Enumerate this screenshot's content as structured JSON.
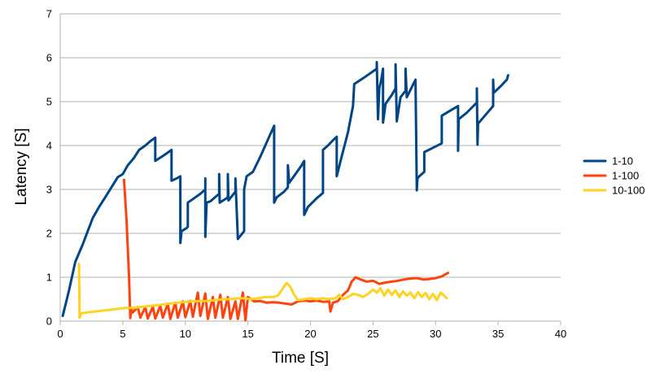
{
  "chart_data": {
    "type": "line",
    "title": "",
    "xlabel": "Time [S]",
    "ylabel": "Latency [S]",
    "xlim": [
      0,
      40
    ],
    "ylim": [
      0,
      7
    ],
    "x_ticks": [
      0,
      5,
      10,
      15,
      20,
      25,
      30,
      35,
      40
    ],
    "y_ticks": [
      0,
      1,
      2,
      3,
      4,
      5,
      6,
      7
    ],
    "grid": "horizontal",
    "legend_position": "right",
    "series": [
      {
        "name": "1-10",
        "color": "#004586",
        "points": [
          [
            0.2,
            0.12
          ],
          [
            0.7,
            0.7
          ],
          [
            1.2,
            1.35
          ],
          [
            1.8,
            1.75
          ],
          [
            2.2,
            2.05
          ],
          [
            2.6,
            2.35
          ],
          [
            3.1,
            2.6
          ],
          [
            3.6,
            2.82
          ],
          [
            4.1,
            3.05
          ],
          [
            4.6,
            3.28
          ],
          [
            5.0,
            3.35
          ],
          [
            5.4,
            3.55
          ],
          [
            5.9,
            3.72
          ],
          [
            6.3,
            3.9
          ],
          [
            6.8,
            4.0
          ],
          [
            7.2,
            4.1
          ],
          [
            7.6,
            4.18
          ],
          [
            7.6,
            3.65
          ],
          [
            8.3,
            3.78
          ],
          [
            8.9,
            3.9
          ],
          [
            8.9,
            3.2
          ],
          [
            9.3,
            3.25
          ],
          [
            9.6,
            3.3
          ],
          [
            9.6,
            1.78
          ],
          [
            9.7,
            2.05
          ],
          [
            10.1,
            2.12
          ],
          [
            10.2,
            2.15
          ],
          [
            10.2,
            2.7
          ],
          [
            10.7,
            2.8
          ],
          [
            11.2,
            2.9
          ],
          [
            11.6,
            3.0
          ],
          [
            11.6,
            3.25
          ],
          [
            11.6,
            1.92
          ],
          [
            11.7,
            2.7
          ],
          [
            12.0,
            2.73
          ],
          [
            12.7,
            2.9
          ],
          [
            12.7,
            3.35
          ],
          [
            12.75,
            2.7
          ],
          [
            13.2,
            2.78
          ],
          [
            13.4,
            2.82
          ],
          [
            13.4,
            3.35
          ],
          [
            13.45,
            2.75
          ],
          [
            14.0,
            2.95
          ],
          [
            14.0,
            3.25
          ],
          [
            14.2,
            1.87
          ],
          [
            14.7,
            2.05
          ],
          [
            14.7,
            3.0
          ],
          [
            14.9,
            3.3
          ],
          [
            15.4,
            3.4
          ],
          [
            16.0,
            3.75
          ],
          [
            16.7,
            4.2
          ],
          [
            17.1,
            4.45
          ],
          [
            17.1,
            2.7
          ],
          [
            17.3,
            2.82
          ],
          [
            17.9,
            2.95
          ],
          [
            18.2,
            3.05
          ],
          [
            18.2,
            3.55
          ],
          [
            18.3,
            3.15
          ],
          [
            18.8,
            3.35
          ],
          [
            19.3,
            3.55
          ],
          [
            19.5,
            3.65
          ],
          [
            19.5,
            2.42
          ],
          [
            19.8,
            2.6
          ],
          [
            20.5,
            2.8
          ],
          [
            21.0,
            2.92
          ],
          [
            21.0,
            3.9
          ],
          [
            21.4,
            4.0
          ],
          [
            21.8,
            4.12
          ],
          [
            22.1,
            4.2
          ],
          [
            22.1,
            3.3
          ],
          [
            22.5,
            3.75
          ],
          [
            23.0,
            4.3
          ],
          [
            23.4,
            4.9
          ],
          [
            23.5,
            5.4
          ],
          [
            24.3,
            5.55
          ],
          [
            25.3,
            5.75
          ],
          [
            25.3,
            5.9
          ],
          [
            25.4,
            4.6
          ],
          [
            25.5,
            5.3
          ],
          [
            25.7,
            5.55
          ],
          [
            25.8,
            5.75
          ],
          [
            25.8,
            4.52
          ],
          [
            26.0,
            4.95
          ],
          [
            26.5,
            5.15
          ],
          [
            26.8,
            5.3
          ],
          [
            26.8,
            5.85
          ],
          [
            26.9,
            4.55
          ],
          [
            27.2,
            5.1
          ],
          [
            27.6,
            5.25
          ],
          [
            27.6,
            5.75
          ],
          [
            27.7,
            5.1
          ],
          [
            28.4,
            5.5
          ],
          [
            28.5,
            2.98
          ],
          [
            28.55,
            3.25
          ],
          [
            28.7,
            3.3
          ],
          [
            29.1,
            3.4
          ],
          [
            29.1,
            3.85
          ],
          [
            29.8,
            3.95
          ],
          [
            30.5,
            4.05
          ],
          [
            30.5,
            4.68
          ],
          [
            31.2,
            4.8
          ],
          [
            31.8,
            4.9
          ],
          [
            31.8,
            3.88
          ],
          [
            31.85,
            4.6
          ],
          [
            32.5,
            4.75
          ],
          [
            33.3,
            4.98
          ],
          [
            33.3,
            5.3
          ],
          [
            33.35,
            4.02
          ],
          [
            33.4,
            4.5
          ],
          [
            34.0,
            4.7
          ],
          [
            34.6,
            4.9
          ],
          [
            34.6,
            5.5
          ],
          [
            34.65,
            5.2
          ],
          [
            35.2,
            5.35
          ],
          [
            35.7,
            5.5
          ],
          [
            35.8,
            5.6
          ]
        ]
      },
      {
        "name": "1-100",
        "color": "#ff420e",
        "points": [
          [
            5.1,
            3.22
          ],
          [
            5.3,
            2.3
          ],
          [
            5.5,
            1.0
          ],
          [
            5.6,
            0.07
          ],
          [
            5.7,
            0.28
          ],
          [
            5.8,
            0.2
          ],
          [
            6.2,
            0.32
          ],
          [
            6.4,
            0.08
          ],
          [
            6.8,
            0.32
          ],
          [
            7.0,
            0.06
          ],
          [
            7.4,
            0.33
          ],
          [
            7.6,
            0.06
          ],
          [
            8.0,
            0.35
          ],
          [
            8.2,
            0.08
          ],
          [
            8.6,
            0.4
          ],
          [
            8.8,
            0.05
          ],
          [
            9.2,
            0.42
          ],
          [
            9.4,
            0.08
          ],
          [
            9.8,
            0.45
          ],
          [
            10.0,
            0.09
          ],
          [
            10.4,
            0.46
          ],
          [
            10.6,
            0.1
          ],
          [
            11.0,
            0.65
          ],
          [
            11.2,
            0.12
          ],
          [
            11.6,
            0.63
          ],
          [
            11.8,
            0.05
          ],
          [
            12.2,
            0.55
          ],
          [
            12.4,
            0.08
          ],
          [
            12.8,
            0.6
          ],
          [
            13.0,
            0.08
          ],
          [
            13.4,
            0.55
          ],
          [
            13.6,
            0.05
          ],
          [
            14.0,
            0.45
          ],
          [
            14.2,
            0.05
          ],
          [
            14.6,
            0.65
          ],
          [
            14.8,
            0.02
          ],
          [
            15.0,
            0.55
          ],
          [
            15.5,
            0.45
          ],
          [
            16.0,
            0.46
          ],
          [
            16.5,
            0.42
          ],
          [
            17.0,
            0.43
          ],
          [
            17.5,
            0.42
          ],
          [
            18.0,
            0.4
          ],
          [
            18.5,
            0.38
          ],
          [
            19.0,
            0.45
          ],
          [
            19.5,
            0.47
          ],
          [
            20.0,
            0.45
          ],
          [
            20.5,
            0.47
          ],
          [
            21.0,
            0.44
          ],
          [
            21.5,
            0.45
          ],
          [
            21.6,
            0.22
          ],
          [
            21.8,
            0.42
          ],
          [
            22.2,
            0.46
          ],
          [
            22.6,
            0.6
          ],
          [
            23.0,
            0.7
          ],
          [
            23.3,
            0.9
          ],
          [
            23.6,
            1.0
          ],
          [
            24.0,
            0.95
          ],
          [
            24.5,
            0.9
          ],
          [
            25.0,
            0.92
          ],
          [
            25.5,
            0.85
          ],
          [
            26.0,
            0.88
          ],
          [
            26.5,
            0.9
          ],
          [
            27.0,
            0.92
          ],
          [
            27.5,
            0.95
          ],
          [
            28.0,
            0.97
          ],
          [
            28.5,
            0.98
          ],
          [
            29.0,
            0.95
          ],
          [
            29.5,
            0.96
          ],
          [
            30.0,
            0.98
          ],
          [
            30.5,
            1.02
          ],
          [
            31.0,
            1.1
          ]
        ]
      },
      {
        "name": "10-100",
        "color": "#ffd320",
        "points": [
          [
            1.5,
            1.3
          ],
          [
            1.55,
            0.08
          ],
          [
            1.7,
            0.18
          ],
          [
            2.2,
            0.2
          ],
          [
            2.8,
            0.22
          ],
          [
            3.4,
            0.24
          ],
          [
            4.0,
            0.26
          ],
          [
            4.6,
            0.28
          ],
          [
            5.2,
            0.3
          ],
          [
            5.8,
            0.3
          ],
          [
            6.4,
            0.32
          ],
          [
            7.0,
            0.34
          ],
          [
            7.6,
            0.36
          ],
          [
            8.2,
            0.38
          ],
          [
            8.8,
            0.4
          ],
          [
            9.4,
            0.42
          ],
          [
            10.0,
            0.44
          ],
          [
            10.6,
            0.45
          ],
          [
            11.2,
            0.46
          ],
          [
            11.8,
            0.46
          ],
          [
            12.4,
            0.48
          ],
          [
            13.0,
            0.5
          ],
          [
            13.6,
            0.5
          ],
          [
            14.2,
            0.52
          ],
          [
            14.8,
            0.52
          ],
          [
            15.2,
            0.5
          ],
          [
            15.8,
            0.52
          ],
          [
            16.4,
            0.55
          ],
          [
            17.0,
            0.55
          ],
          [
            17.4,
            0.58
          ],
          [
            17.8,
            0.75
          ],
          [
            18.1,
            0.87
          ],
          [
            18.4,
            0.78
          ],
          [
            18.7,
            0.6
          ],
          [
            19.0,
            0.48
          ],
          [
            19.5,
            0.5
          ],
          [
            20.0,
            0.52
          ],
          [
            20.5,
            0.5
          ],
          [
            21.0,
            0.52
          ],
          [
            21.5,
            0.5
          ],
          [
            22.0,
            0.52
          ],
          [
            22.3,
            0.6
          ],
          [
            22.6,
            0.5
          ],
          [
            23.0,
            0.55
          ],
          [
            23.4,
            0.62
          ],
          [
            23.8,
            0.6
          ],
          [
            24.2,
            0.55
          ],
          [
            24.6,
            0.62
          ],
          [
            25.0,
            0.72
          ],
          [
            25.3,
            0.65
          ],
          [
            25.6,
            0.75
          ],
          [
            25.9,
            0.58
          ],
          [
            26.2,
            0.72
          ],
          [
            26.5,
            0.6
          ],
          [
            26.8,
            0.7
          ],
          [
            27.1,
            0.55
          ],
          [
            27.4,
            0.68
          ],
          [
            27.7,
            0.58
          ],
          [
            28.0,
            0.65
          ],
          [
            28.3,
            0.52
          ],
          [
            28.6,
            0.66
          ],
          [
            28.9,
            0.55
          ],
          [
            29.2,
            0.64
          ],
          [
            29.5,
            0.5
          ],
          [
            29.8,
            0.62
          ],
          [
            30.1,
            0.48
          ],
          [
            30.4,
            0.65
          ],
          [
            30.7,
            0.58
          ],
          [
            30.9,
            0.52
          ]
        ]
      }
    ]
  }
}
